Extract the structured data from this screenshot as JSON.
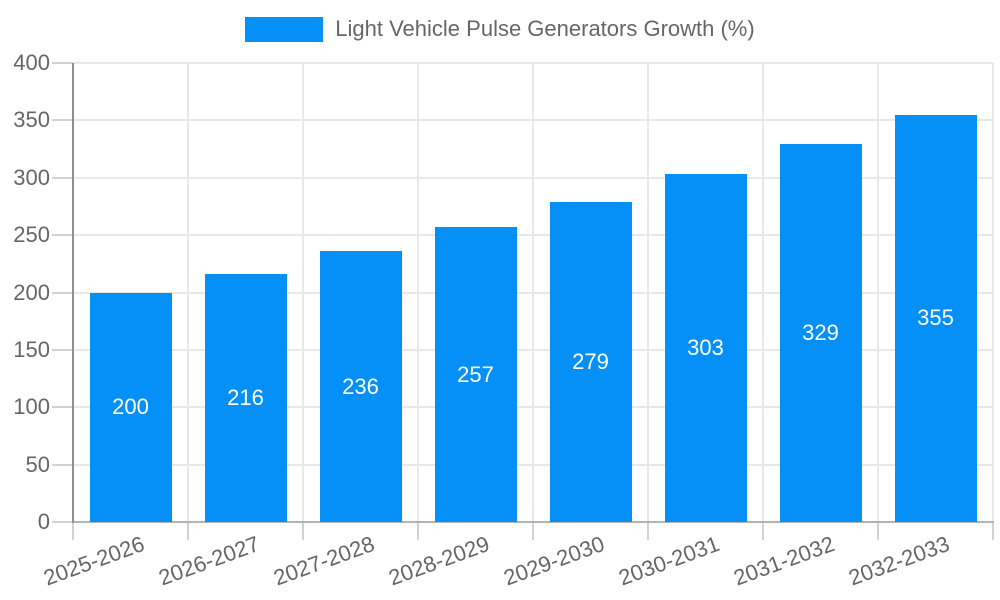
{
  "chart_data": {
    "type": "bar",
    "title": "Light Vehicle Pulse Generators Growth (%)",
    "legend": {
      "label": "Light Vehicle Pulse Generators Growth (%)",
      "position": "top"
    },
    "categories": [
      "2025-2026",
      "2026-2027",
      "2027-2028",
      "2028-2029",
      "2029-2030",
      "2030-2031",
      "2031-2032",
      "2032-2033"
    ],
    "values": [
      200,
      216,
      236,
      257,
      279,
      303,
      329,
      355
    ],
    "xlabel": "",
    "ylabel": "",
    "ylim": [
      0,
      400
    ],
    "ytick_step": 50,
    "yticks": [
      0,
      50,
      100,
      150,
      200,
      250,
      300,
      350,
      400
    ],
    "grid": true,
    "bar_value_labels_shown": true,
    "x_label_rotation_deg": -20,
    "colors": {
      "bar": "#0590f8",
      "gridline": "#e8e8e8",
      "tick": "#d2d2d2",
      "axis_y": "#8f8f8f",
      "axis_x": "#b3b3b3",
      "label": "#666666",
      "value_label": "#ffffff",
      "background": "#ffffff"
    }
  }
}
